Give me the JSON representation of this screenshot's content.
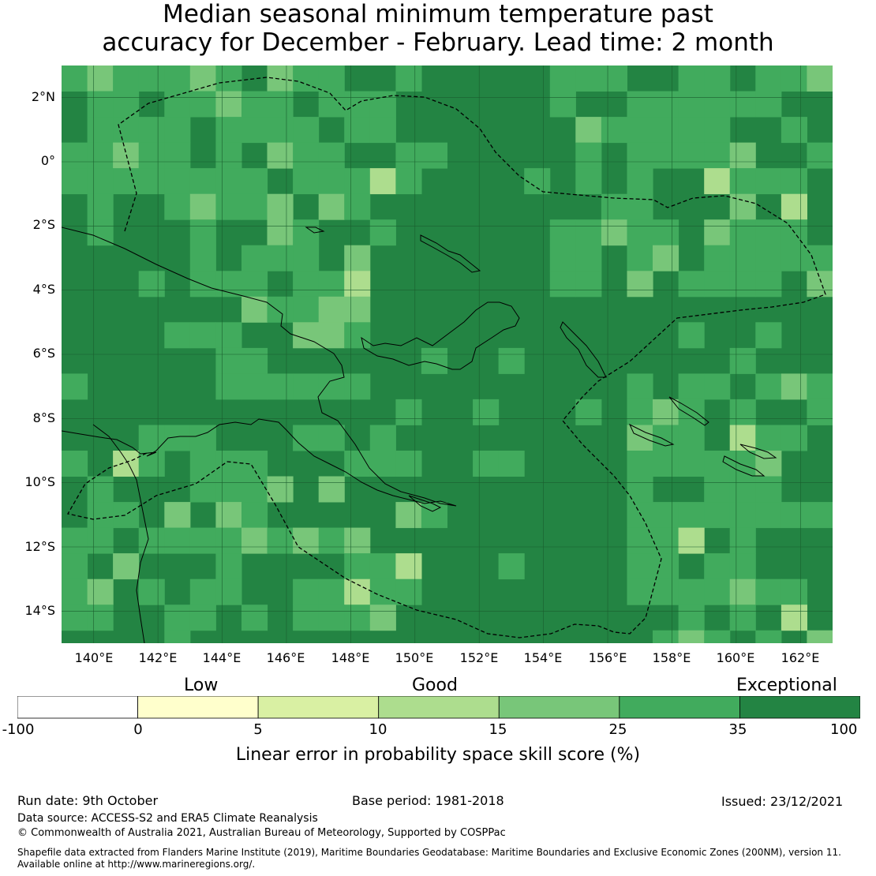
{
  "title": {
    "line1": "Median seasonal minimum temperature past",
    "line2": "accuracy for December - February. Lead time: 2 month"
  },
  "map": {
    "lat_ticks": [
      "2°N",
      "0°",
      "2°S",
      "4°S",
      "6°S",
      "8°S",
      "10°S",
      "12°S",
      "14°S"
    ],
    "lon_ticks": [
      "140°E",
      "142°E",
      "144°E",
      "146°E",
      "148°E",
      "150°E",
      "152°E",
      "154°E",
      "156°E",
      "158°E",
      "160°E",
      "162°E"
    ],
    "lon_range": [
      139,
      163
    ],
    "lat_range": [
      -15,
      3
    ],
    "grid": true,
    "base_category_color": "#238443"
  },
  "legend": {
    "categories": [
      "Low",
      "Good",
      "Exceptional"
    ],
    "tick_values": [
      "-100",
      "0",
      "5",
      "10",
      "15",
      "25",
      "35",
      "100"
    ],
    "bins": [
      {
        "from": -100,
        "to": 0,
        "color": "#ffffff"
      },
      {
        "from": 0,
        "to": 5,
        "color": "#ffffcc"
      },
      {
        "from": 5,
        "to": 10,
        "color": "#d9f0a3"
      },
      {
        "from": 10,
        "to": 15,
        "color": "#addd8e"
      },
      {
        "from": 15,
        "to": 25,
        "color": "#78c679"
      },
      {
        "from": 25,
        "to": 35,
        "color": "#41ab5d"
      },
      {
        "from": 35,
        "to": 100,
        "color": "#238443"
      }
    ],
    "label": "Linear error in probability space skill score (%)"
  },
  "footer": {
    "run_date": "Run date: 9th October",
    "base_period": "Base period: 1981-2018",
    "issued": "Issued: 23/12/2021",
    "data_source": "Data source: ACCESS-S2 and ERA5 Climate Reanalysis",
    "copyright": "© Commonwealth of Australia 2021, Australian Bureau of Meteorology, Supported by COSPPac",
    "shapefile_line1": "Shapefile data extracted from Flanders Marine Institute (2019), Maritime Boundaries Geodatabase: Maritime Boundaries and Exclusive Economic Zones (200NM), version 11.",
    "shapefile_line2": "Available online at http://www.marineregions.org/."
  }
}
